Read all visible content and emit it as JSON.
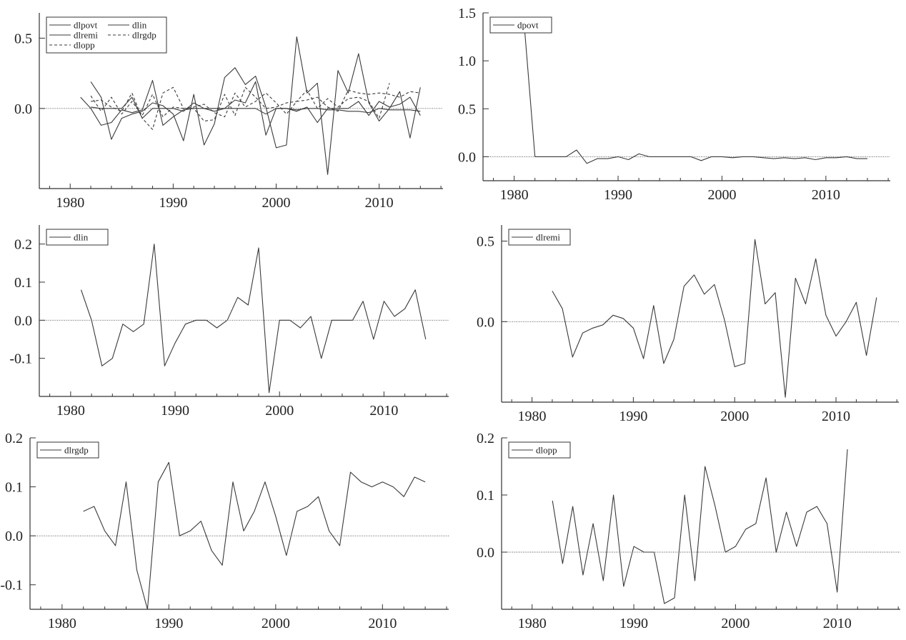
{
  "chart_data": [
    {
      "type": "line",
      "title": "",
      "xlabel": "",
      "ylabel": "",
      "xlim": [
        1977,
        2016.2
      ],
      "ylim": [
        -0.57,
        0.68
      ],
      "xticks": [
        1980,
        1990,
        2000,
        2010
      ],
      "yticks": [
        0.5,
        0.0
      ],
      "ytick_labels": [
        "0.5",
        "0.0"
      ],
      "legend_position": "top-left",
      "legend_columns": 2,
      "series": [
        {
          "name": "dlpovt",
          "dash": "solid",
          "x": [
            1982,
            1983,
            1984,
            1985,
            1986,
            1987,
            1988,
            1989,
            1990,
            1991,
            1992,
            1993,
            1994,
            1995,
            1996,
            1997,
            1998,
            1999,
            2000,
            2001,
            2002,
            2003,
            2004,
            2005,
            2006,
            2007,
            2008,
            2009,
            2010,
            2011,
            2012,
            2013,
            2014
          ],
          "y": [
            0.01,
            0.0,
            0.0,
            0.0,
            0.08,
            -0.07,
            0.0,
            0.0,
            0.0,
            -0.02,
            0.04,
            0.0,
            0.0,
            0.0,
            0.0,
            0.0,
            0.0,
            -0.04,
            0.0,
            0.0,
            -0.01,
            0.0,
            0.0,
            -0.01,
            -0.01,
            -0.02,
            -0.02,
            -0.03,
            0.0,
            -0.01,
            -0.01,
            -0.01,
            -0.02
          ]
        },
        {
          "name": "dlin",
          "dash": "solid",
          "x": [
            1981,
            1982,
            1983,
            1984,
            1985,
            1986,
            1987,
            1988,
            1989,
            1990,
            1991,
            1992,
            1993,
            1994,
            1995,
            1996,
            1997,
            1998,
            1999,
            2000,
            2001,
            2002,
            2003,
            2004,
            2005,
            2006,
            2007,
            2008,
            2009,
            2010,
            2011,
            2012,
            2013,
            2014
          ],
          "y": [
            0.08,
            0.0,
            -0.12,
            -0.1,
            -0.01,
            -0.03,
            -0.01,
            0.2,
            -0.12,
            -0.06,
            -0.01,
            0.0,
            0.0,
            -0.02,
            0.0,
            0.06,
            0.04,
            0.19,
            -0.19,
            0.0,
            0.0,
            -0.02,
            0.01,
            -0.1,
            0.0,
            0.0,
            0.0,
            0.05,
            -0.05,
            0.05,
            0.01,
            0.03,
            0.08,
            -0.05
          ]
        },
        {
          "name": "dlremi",
          "dash": "solid",
          "x": [
            1982,
            1983,
            1984,
            1985,
            1986,
            1987,
            1988,
            1989,
            1990,
            1991,
            1992,
            1993,
            1994,
            1995,
            1996,
            1997,
            1998,
            1999,
            2000,
            2001,
            2002,
            2003,
            2004,
            2005,
            2006,
            2007,
            2008,
            2009,
            2010,
            2011,
            2012,
            2013,
            2014
          ],
          "y": [
            0.19,
            0.08,
            -0.22,
            -0.07,
            -0.04,
            -0.02,
            0.04,
            0.02,
            -0.04,
            -0.23,
            0.1,
            -0.26,
            -0.11,
            0.22,
            0.29,
            0.17,
            0.23,
            0.01,
            -0.28,
            -0.26,
            0.51,
            0.11,
            0.18,
            -0.47,
            0.27,
            0.11,
            0.39,
            0.04,
            -0.09,
            0.0,
            0.12,
            -0.21,
            0.15
          ]
        },
        {
          "name": "dlrgdp",
          "dash": "dashed",
          "x": [
            1982,
            1983,
            1984,
            1985,
            1986,
            1987,
            1988,
            1989,
            1990,
            1991,
            1992,
            1993,
            1994,
            1995,
            1996,
            1997,
            1998,
            1999,
            2000,
            2001,
            2002,
            2003,
            2004,
            2005,
            2006,
            2007,
            2008,
            2009,
            2010,
            2011,
            2012,
            2013,
            2014
          ],
          "y": [
            0.05,
            0.06,
            0.01,
            -0.02,
            0.11,
            -0.07,
            -0.15,
            0.11,
            0.15,
            0.0,
            0.01,
            0.03,
            -0.03,
            -0.06,
            0.11,
            0.01,
            0.05,
            0.11,
            0.04,
            -0.04,
            0.05,
            0.06,
            0.08,
            0.01,
            -0.02,
            0.13,
            0.11,
            0.1,
            0.11,
            0.1,
            0.08,
            0.12,
            0.11
          ]
        },
        {
          "name": "dlopp",
          "dash": "dashed",
          "x": [
            1982,
            1983,
            1984,
            1985,
            1986,
            1987,
            1988,
            1989,
            1990,
            1991,
            1992,
            1993,
            1994,
            1995,
            1996,
            1997,
            1998,
            1999,
            2000,
            2001,
            2002,
            2003,
            2004,
            2005,
            2006,
            2007,
            2008,
            2009,
            2010,
            2011
          ],
          "y": [
            0.09,
            -0.02,
            0.08,
            -0.04,
            0.05,
            -0.05,
            0.1,
            -0.06,
            0.01,
            0.0,
            0.0,
            -0.09,
            -0.08,
            0.1,
            -0.05,
            0.15,
            0.08,
            0.0,
            0.01,
            0.04,
            0.05,
            0.13,
            0.0,
            0.07,
            0.01,
            0.07,
            0.08,
            0.05,
            -0.07,
            0.18
          ]
        }
      ]
    },
    {
      "type": "line",
      "title": "",
      "xlabel": "",
      "ylabel": "",
      "xlim": [
        1977,
        2016.2
      ],
      "ylim": [
        -0.25,
        1.5
      ],
      "xticks": [
        1980,
        1990,
        2000,
        2010
      ],
      "yticks": [
        1.5,
        1.0,
        0.5,
        0.0
      ],
      "ytick_labels": [
        "1.5",
        "1.0",
        "0.5",
        "0.0"
      ],
      "legend_position": "top-left",
      "legend_columns": 1,
      "series": [
        {
          "name": "dpovt",
          "dash": "solid",
          "x": [
            1981,
            1982,
            1983,
            1984,
            1985,
            1986,
            1987,
            1988,
            1989,
            1990,
            1991,
            1992,
            1993,
            1994,
            1995,
            1996,
            1997,
            1998,
            1999,
            2000,
            2001,
            2002,
            2003,
            2004,
            2005,
            2006,
            2007,
            2008,
            2009,
            2010,
            2011,
            2012,
            2013,
            2014
          ],
          "y": [
            1.33,
            0.0,
            0.0,
            0.0,
            0.0,
            0.07,
            -0.07,
            -0.02,
            -0.02,
            0.0,
            -0.03,
            0.03,
            0.0,
            0.0,
            0.0,
            0.0,
            0.0,
            -0.04,
            0.0,
            0.0,
            -0.01,
            0.0,
            0.0,
            -0.01,
            -0.02,
            -0.01,
            -0.02,
            -0.01,
            -0.03,
            -0.01,
            -0.01,
            0.0,
            -0.02,
            -0.02
          ]
        }
      ]
    },
    {
      "type": "line",
      "title": "",
      "xlabel": "",
      "ylabel": "",
      "xlim": [
        1977,
        2016.2
      ],
      "ylim": [
        -0.2,
        0.25
      ],
      "xticks": [
        1980,
        1990,
        2000,
        2010
      ],
      "yticks": [
        0.2,
        0.1,
        0.0,
        -0.1
      ],
      "ytick_labels": [
        "0.2",
        "0.1",
        "0.0",
        "-0.1"
      ],
      "legend_position": "top-left",
      "legend_columns": 1,
      "series": [
        {
          "name": "dlin",
          "dash": "solid",
          "x": [
            1981,
            1982,
            1983,
            1984,
            1985,
            1986,
            1987,
            1988,
            1989,
            1990,
            1991,
            1992,
            1993,
            1994,
            1995,
            1996,
            1997,
            1998,
            1999,
            2000,
            2001,
            2002,
            2003,
            2004,
            2005,
            2006,
            2007,
            2008,
            2009,
            2010,
            2011,
            2012,
            2013,
            2014
          ],
          "y": [
            0.08,
            0.0,
            -0.12,
            -0.1,
            -0.01,
            -0.03,
            -0.01,
            0.2,
            -0.12,
            -0.06,
            -0.01,
            0.0,
            0.0,
            -0.02,
            0.0,
            0.06,
            0.04,
            0.19,
            -0.19,
            0.0,
            0.0,
            -0.02,
            0.01,
            -0.1,
            0.0,
            0.0,
            0.0,
            0.05,
            -0.05,
            0.05,
            0.01,
            0.03,
            0.08,
            -0.05
          ]
        }
      ]
    },
    {
      "type": "line",
      "title": "",
      "xlabel": "",
      "ylabel": "",
      "xlim": [
        1977,
        2016.2
      ],
      "ylim": [
        -0.5,
        0.6
      ],
      "xticks": [
        1980,
        1990,
        2000,
        2010
      ],
      "yticks": [
        0.5,
        0.0
      ],
      "ytick_labels": [
        "0.5",
        "0.0"
      ],
      "legend_position": "top-left",
      "legend_columns": 1,
      "series": [
        {
          "name": "dlremi",
          "dash": "solid",
          "x": [
            1982,
            1983,
            1984,
            1985,
            1986,
            1987,
            1988,
            1989,
            1990,
            1991,
            1992,
            1993,
            1994,
            1995,
            1996,
            1997,
            1998,
            1999,
            2000,
            2001,
            2002,
            2003,
            2004,
            2005,
            2006,
            2007,
            2008,
            2009,
            2010,
            2011,
            2012,
            2013,
            2014
          ],
          "y": [
            0.19,
            0.08,
            -0.22,
            -0.07,
            -0.04,
            -0.02,
            0.04,
            0.02,
            -0.04,
            -0.23,
            0.1,
            -0.26,
            -0.11,
            0.22,
            0.29,
            0.17,
            0.23,
            0.01,
            -0.28,
            -0.26,
            0.51,
            0.11,
            0.18,
            -0.47,
            0.27,
            0.11,
            0.39,
            0.04,
            -0.09,
            0.0,
            0.12,
            -0.21,
            0.15
          ]
        }
      ]
    },
    {
      "type": "line",
      "title": "",
      "xlabel": "",
      "ylabel": "",
      "xlim": [
        1977,
        2016.2
      ],
      "ylim": [
        -0.15,
        0.2
      ],
      "xticks": [
        1980,
        1990,
        2000,
        2010
      ],
      "yticks": [
        0.2,
        0.1,
        0.0,
        -0.1
      ],
      "ytick_labels": [
        "0.2",
        "0.1",
        "0.0",
        "-0.1"
      ],
      "legend_position": "top-left",
      "legend_columns": 1,
      "series": [
        {
          "name": "dlrgdp",
          "dash": "solid",
          "x": [
            1982,
            1983,
            1984,
            1985,
            1986,
            1987,
            1988,
            1989,
            1990,
            1991,
            1992,
            1993,
            1994,
            1995,
            1996,
            1997,
            1998,
            1999,
            2000,
            2001,
            2002,
            2003,
            2004,
            2005,
            2006,
            2007,
            2008,
            2009,
            2010,
            2011,
            2012,
            2013,
            2014
          ],
          "y": [
            0.05,
            0.06,
            0.01,
            -0.02,
            0.11,
            -0.07,
            -0.15,
            0.11,
            0.15,
            0.0,
            0.01,
            0.03,
            -0.03,
            -0.06,
            0.11,
            0.01,
            0.05,
            0.11,
            0.04,
            -0.04,
            0.05,
            0.06,
            0.08,
            0.01,
            -0.02,
            0.13,
            0.11,
            0.1,
            0.11,
            0.1,
            0.08,
            0.12,
            0.11
          ]
        }
      ]
    },
    {
      "type": "line",
      "title": "",
      "xlabel": "",
      "ylabel": "",
      "xlim": [
        1977,
        2016.2
      ],
      "ylim": [
        -0.1,
        0.2
      ],
      "xticks": [
        1980,
        1990,
        2000,
        2010
      ],
      "yticks": [
        0.2,
        0.1,
        0.0
      ],
      "ytick_labels": [
        "0.2",
        "0.1",
        "0.0"
      ],
      "legend_position": "top-left",
      "legend_columns": 1,
      "series": [
        {
          "name": "dlopp",
          "dash": "solid",
          "x": [
            1982,
            1983,
            1984,
            1985,
            1986,
            1987,
            1988,
            1989,
            1990,
            1991,
            1992,
            1993,
            1994,
            1995,
            1996,
            1997,
            1998,
            1999,
            2000,
            2001,
            2002,
            2003,
            2004,
            2005,
            2006,
            2007,
            2008,
            2009,
            2010,
            2011
          ],
          "y": [
            0.09,
            -0.02,
            0.08,
            -0.04,
            0.05,
            -0.05,
            0.1,
            -0.06,
            0.01,
            0.0,
            0.0,
            -0.09,
            -0.08,
            0.1,
            -0.05,
            0.15,
            0.08,
            0.0,
            0.01,
            0.04,
            0.05,
            0.13,
            0.0,
            0.07,
            0.01,
            0.07,
            0.08,
            0.05,
            -0.07,
            0.18
          ]
        }
      ]
    }
  ]
}
